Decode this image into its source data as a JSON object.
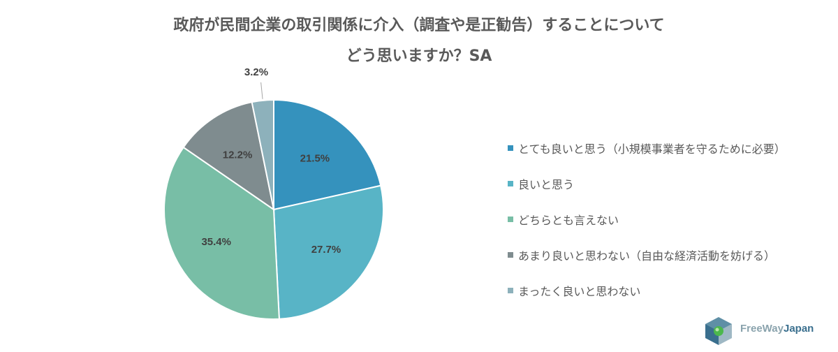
{
  "chart_data": {
    "type": "pie",
    "title_lines": [
      "政府が民間企業の取引関係に介入（調査や是正勧告）することについて",
      "どう思いますか？SA"
    ],
    "slices": [
      {
        "label": "とても良いと思う（小規模事業者を守るために必要）",
        "value": 21.5,
        "display": "21.5%",
        "color": "#3592bd"
      },
      {
        "label": "良いと思う",
        "value": 27.7,
        "display": "27.7%",
        "color": "#58b4c6"
      },
      {
        "label": "どちらとも言えない",
        "value": 35.4,
        "display": "35.4%",
        "color": "#78bea6"
      },
      {
        "label": "あまり良いと思わない（自由な経済活動を妨げる）",
        "value": 12.2,
        "display": "12.2%",
        "color": "#7f8c8f"
      },
      {
        "label": "まったく良いと思わない",
        "value": 3.2,
        "display": "3.2%",
        "color": "#8db1bb"
      }
    ],
    "legend_position": "right"
  },
  "logo": {
    "part1": "FreeWay",
    "part2": "Japan"
  }
}
